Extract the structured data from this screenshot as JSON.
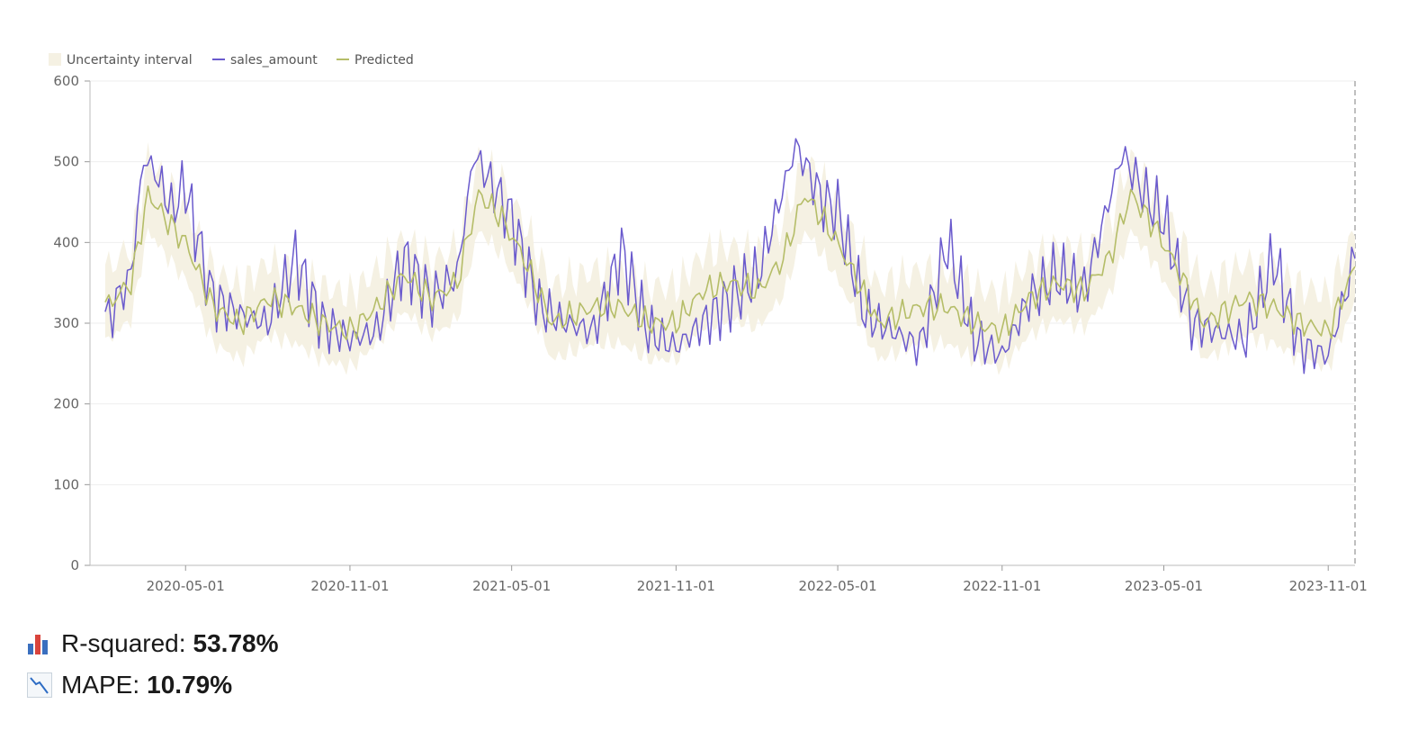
{
  "chart_data": {
    "type": "line",
    "legend": [
      "Uncertainty interval",
      "sales_amount",
      "Predicted"
    ],
    "legend_position": "top-left",
    "series": [
      {
        "name": "sales_amount",
        "color": "#6a5acd",
        "points": [
          [
            "2020-02-01",
            300
          ],
          [
            "2020-03-01",
            360
          ],
          [
            "2020-03-15",
            505
          ],
          [
            "2020-04-01",
            480
          ],
          [
            "2020-04-15",
            440
          ],
          [
            "2020-05-01",
            470
          ],
          [
            "2020-05-15",
            400
          ],
          [
            "2020-06-01",
            330
          ],
          [
            "2020-07-01",
            310
          ],
          [
            "2020-08-01",
            300
          ],
          [
            "2020-09-01",
            380
          ],
          [
            "2020-10-01",
            300
          ],
          [
            "2020-11-01",
            280
          ],
          [
            "2020-12-01",
            290
          ],
          [
            "2021-01-01",
            380
          ],
          [
            "2021-02-01",
            330
          ],
          [
            "2021-03-01",
            360
          ],
          [
            "2021-03-20",
            510
          ],
          [
            "2021-04-15",
            460
          ],
          [
            "2021-05-01",
            430
          ],
          [
            "2021-06-01",
            320
          ],
          [
            "2021-07-01",
            300
          ],
          [
            "2021-08-01",
            290
          ],
          [
            "2021-09-01",
            390
          ],
          [
            "2021-10-01",
            290
          ],
          [
            "2021-11-01",
            270
          ],
          [
            "2021-12-01",
            300
          ],
          [
            "2022-01-01",
            330
          ],
          [
            "2022-02-01",
            360
          ],
          [
            "2022-03-15",
            520
          ],
          [
            "2022-04-15",
            450
          ],
          [
            "2022-05-01",
            440
          ],
          [
            "2022-06-01",
            310
          ],
          [
            "2022-07-01",
            290
          ],
          [
            "2022-08-01",
            270
          ],
          [
            "2022-09-01",
            400
          ],
          [
            "2022-10-01",
            280
          ],
          [
            "2022-11-01",
            260
          ],
          [
            "2022-12-01",
            330
          ],
          [
            "2023-01-01",
            360
          ],
          [
            "2023-02-01",
            340
          ],
          [
            "2023-03-15",
            510
          ],
          [
            "2023-04-15",
            450
          ],
          [
            "2023-05-01",
            430
          ],
          [
            "2023-06-01",
            300
          ],
          [
            "2023-07-01",
            290
          ],
          [
            "2023-08-01",
            280
          ],
          [
            "2023-09-01",
            380
          ],
          [
            "2023-10-01",
            270
          ],
          [
            "2023-11-01",
            260
          ],
          [
            "2023-12-01",
            380
          ]
        ]
      },
      {
        "name": "Predicted",
        "color": "#b5bd68",
        "points": [
          [
            "2020-02-01",
            320
          ],
          [
            "2020-03-01",
            350
          ],
          [
            "2020-03-20",
            460
          ],
          [
            "2020-04-15",
            420
          ],
          [
            "2020-05-01",
            400
          ],
          [
            "2020-06-01",
            320
          ],
          [
            "2020-07-01",
            300
          ],
          [
            "2020-08-01",
            330
          ],
          [
            "2020-09-01",
            320
          ],
          [
            "2020-10-01",
            300
          ],
          [
            "2020-11-01",
            290
          ],
          [
            "2020-12-01",
            320
          ],
          [
            "2021-01-01",
            360
          ],
          [
            "2021-02-01",
            330
          ],
          [
            "2021-03-01",
            350
          ],
          [
            "2021-03-25",
            460
          ],
          [
            "2021-04-20",
            430
          ],
          [
            "2021-05-15",
            380
          ],
          [
            "2021-06-15",
            300
          ],
          [
            "2021-08-01",
            320
          ],
          [
            "2021-09-01",
            320
          ],
          [
            "2021-10-01",
            300
          ],
          [
            "2021-11-01",
            300
          ],
          [
            "2021-12-01",
            340
          ],
          [
            "2022-01-01",
            350
          ],
          [
            "2022-02-01",
            340
          ],
          [
            "2022-03-01",
            380
          ],
          [
            "2022-03-25",
            460
          ],
          [
            "2022-04-20",
            420
          ],
          [
            "2022-05-15",
            370
          ],
          [
            "2022-06-15",
            300
          ],
          [
            "2022-08-01",
            320
          ],
          [
            "2022-09-01",
            320
          ],
          [
            "2022-10-01",
            300
          ],
          [
            "2022-11-01",
            290
          ],
          [
            "2022-12-01",
            330
          ],
          [
            "2023-01-01",
            350
          ],
          [
            "2023-02-01",
            340
          ],
          [
            "2023-03-01",
            380
          ],
          [
            "2023-03-25",
            460
          ],
          [
            "2023-04-20",
            420
          ],
          [
            "2023-05-15",
            370
          ],
          [
            "2023-06-15",
            300
          ],
          [
            "2023-08-01",
            330
          ],
          [
            "2023-09-01",
            320
          ],
          [
            "2023-10-01",
            300
          ],
          [
            "2023-11-01",
            290
          ],
          [
            "2023-12-01",
            370
          ]
        ]
      }
    ],
    "interval_color": "#f5f1e3",
    "interval_halfwidth": 45,
    "x_range": [
      "2020-01-15",
      "2023-12-01"
    ],
    "x_ticks": [
      "2020-05-01",
      "2020-11-01",
      "2021-05-01",
      "2021-11-01",
      "2022-05-01",
      "2022-11-01",
      "2023-05-01",
      "2023-11-01"
    ],
    "y_range": [
      0,
      600
    ],
    "y_ticks": [
      0,
      100,
      200,
      300,
      400,
      500,
      600
    ],
    "grid": true
  },
  "metrics": [
    {
      "label": "R-squared:",
      "value": "53.78%",
      "icon": "bar-chart-icon"
    },
    {
      "label": "MAPE:",
      "value": "10.79%",
      "icon": "chart-decreasing-icon"
    }
  ]
}
